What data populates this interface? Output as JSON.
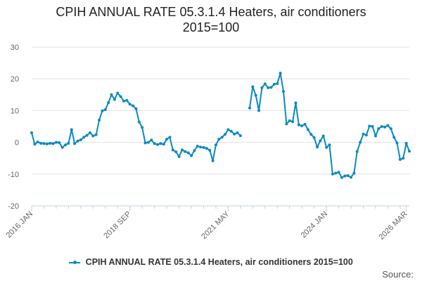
{
  "chart_data": {
    "type": "line",
    "title_line1": "CPIH ANNUAL RATE 05.3.1.4 Heaters, air conditioners",
    "title_line2": "2015=100",
    "xlabel": "",
    "ylabel": "",
    "ylim": [
      -20,
      30
    ],
    "yticks": [
      30,
      20,
      10,
      0,
      -10,
      -20
    ],
    "x_tick_labels": [
      "2016 JAN",
      "2018 SEP",
      "2021 MAY",
      "2024 JAN",
      "2026 MAR"
    ],
    "x_tick_indices": [
      0,
      32,
      64,
      96,
      122
    ],
    "grid": true,
    "legend_position": "bottom",
    "color": "#0b8ac0",
    "series": [
      {
        "name": "CPIH ANNUAL RATE 05.3.1.4 Heaters, air conditioners 2015=100",
        "start": "2016-01",
        "values": [
          3.0,
          -0.6,
          0.1,
          -0.3,
          -0.4,
          -0.5,
          -0.3,
          -0.4,
          0.0,
          -0.1,
          -1.6,
          -0.8,
          -0.3,
          4.0,
          -0.4,
          0.4,
          0.8,
          1.6,
          2.2,
          3.0,
          2.0,
          2.4,
          7.0,
          9.9,
          10.3,
          12.5,
          15.0,
          13.5,
          15.5,
          14.4,
          13.0,
          13.2,
          12.0,
          11.5,
          10.6,
          6.4,
          4.7,
          -0.2,
          0.0,
          0.7,
          -0.4,
          -0.7,
          -0.4,
          -0.6,
          1.0,
          1.6,
          -2.4,
          -3.0,
          -4.5,
          -2.4,
          -2.9,
          -3.3,
          -4.2,
          -2.6,
          -1.2,
          -1.5,
          -1.6,
          -1.9,
          -2.5,
          -5.8,
          -0.8,
          1.0,
          1.6,
          2.5,
          4.0,
          3.5,
          2.6,
          3.0,
          2.1,
          null,
          null,
          10.8,
          17.5,
          14.8,
          10.0,
          17.2,
          18.4,
          17.2,
          17.3,
          18.3,
          18.5,
          21.8,
          16.0,
          5.8,
          6.8,
          6.5,
          12.4,
          5.5,
          5.2,
          5.7,
          4.0,
          2.5,
          1.5,
          -1.5,
          0.5,
          2.0,
          -1.6,
          -0.8,
          -10.0,
          -9.7,
          -9.4,
          -11.1,
          -10.6,
          -10.5,
          -11.0,
          -9.7,
          -2.9,
          0.0,
          2.6,
          2.3,
          5.1,
          5.0,
          2.0,
          4.3,
          5.0,
          4.8,
          5.3,
          4.3,
          1.6,
          -0.2,
          -5.4,
          -5.0,
          -0.3,
          -2.8
        ]
      }
    ]
  },
  "legend": {
    "label": "CPIH ANNUAL RATE 05.3.1.4 Heaters, air conditioners 2015=100"
  },
  "footer": {
    "source": "Source:"
  }
}
